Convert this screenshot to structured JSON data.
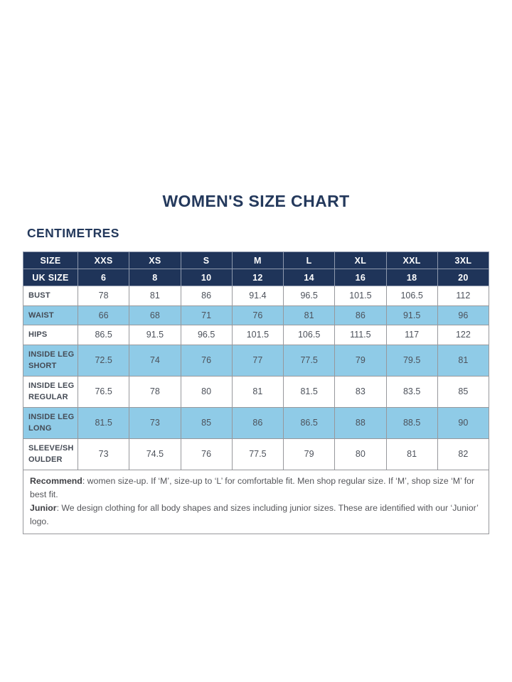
{
  "page": {
    "title": "WOMEN'S SIZE CHART",
    "unit_label": "CENTIMETRES"
  },
  "colors": {
    "navy": "#1F3459",
    "title_navy": "#24395C",
    "row_blue": "#8FCBE7",
    "border_gray": "#97989C",
    "label_text": "#454B55",
    "value_text": "#4D525B",
    "note_text": "#55565A"
  },
  "table": {
    "size_header": {
      "label": "SIZE",
      "sizes": [
        "XXS",
        "XS",
        "S",
        "M",
        "L",
        "XL",
        "XXL",
        "3XL"
      ]
    },
    "uk_size_row": {
      "label": "UK SIZE",
      "values": [
        "6",
        "8",
        "10",
        "12",
        "14",
        "16",
        "18",
        "20"
      ]
    },
    "measure_rows": [
      {
        "label": "BUST",
        "shaded": false,
        "values": [
          "78",
          "81",
          "86",
          "91.4",
          "96.5",
          "101.5",
          "106.5",
          "112"
        ]
      },
      {
        "label": "WAIST",
        "shaded": true,
        "values": [
          "66",
          "68",
          "71",
          "76",
          "81",
          "86",
          "91.5",
          "96"
        ]
      },
      {
        "label": "HIPS",
        "shaded": false,
        "values": [
          "86.5",
          "91.5",
          "96.5",
          "101.5",
          "106.5",
          "111.5",
          "117",
          "122"
        ]
      },
      {
        "label": "INSIDE LEG SHORT",
        "shaded": true,
        "values": [
          "72.5",
          "74",
          "76",
          "77",
          "77.5",
          "79",
          "79.5",
          "81"
        ]
      },
      {
        "label": "INSIDE LEG REGULAR",
        "shaded": false,
        "values": [
          "76.5",
          "78",
          "80",
          "81",
          "81.5",
          "83",
          "83.5",
          "85"
        ]
      },
      {
        "label": "INSIDE LEG LONG",
        "shaded": true,
        "values": [
          "81.5",
          "73",
          "85",
          "86",
          "86.5",
          "88",
          "88.5",
          "90"
        ]
      },
      {
        "label": "SLEEVE/SHOULDER",
        "shaded": false,
        "values": [
          "73",
          "74.5",
          "76",
          "77.5",
          "79",
          "80",
          "81",
          "82"
        ]
      }
    ],
    "notes": [
      {
        "lead": "Recommend",
        "text": ": women size-up. If ‘M’, size-up to ‘L’ for comfortable fit. Men shop regular size. If ‘M’, shop size ‘M’ for best fit."
      },
      {
        "lead": "Junior",
        "text": ": We design clothing for all body shapes and sizes including junior sizes. These are identified with our ‘Junior’ logo."
      }
    ]
  }
}
